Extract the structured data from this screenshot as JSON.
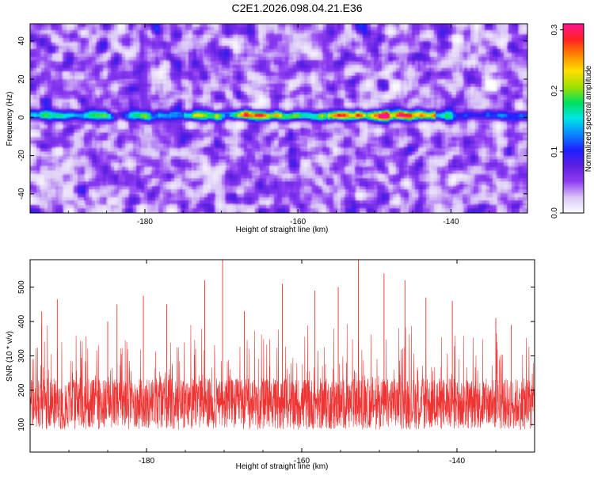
{
  "title": "C2E1.2026.098.04.21.E36",
  "chart_data": [
    {
      "type": "heatmap",
      "xlabel": "Height of straight line (km)",
      "ylabel": "Frequency (Hz)",
      "xlim": [
        -195,
        -130
      ],
      "ylim": [
        -50,
        49
      ],
      "x_ticks": [
        -180,
        -160,
        -140
      ],
      "y_ticks": [
        -40,
        -20,
        0,
        20,
        40
      ],
      "colorbar": {
        "label": "Normalized spectral amplitude",
        "range": [
          0.0,
          0.31
        ],
        "ticks": [
          0.0,
          0.1,
          0.2,
          0.3
        ],
        "colormap": [
          "#ffffff",
          "#d9c6f5",
          "#8f3df2",
          "#5b1fe0",
          "#1f1fff",
          "#0a88ff",
          "#00e5e5",
          "#00e060",
          "#a0e000",
          "#ffe000",
          "#ff8800",
          "#ff2020",
          "#ff1493"
        ]
      },
      "features": {
        "background_level": 0.05,
        "ridge_frequency_hz": 1,
        "ridge_peak_level": 0.28,
        "ridge_strongest_near_km": [
          -152,
          -146
        ]
      }
    },
    {
      "type": "line",
      "xlabel": "Height of straight line (km)",
      "ylabel": "SNR (10 * v/v)",
      "xlim": [
        -195,
        -130
      ],
      "ylim": [
        20,
        580
      ],
      "x_ticks": [
        -180,
        -160,
        -140
      ],
      "y_ticks": [
        100,
        200,
        300,
        400,
        500
      ],
      "series": [
        {
          "color": "#ee3333",
          "baseline": 160,
          "spikes": [
            {
              "x": -193.5,
              "y": 430
            },
            {
              "x": -191.5,
              "y": 465
            },
            {
              "x": -185.0,
              "y": 400
            },
            {
              "x": -183.8,
              "y": 450
            },
            {
              "x": -180.4,
              "y": 475
            },
            {
              "x": -177.4,
              "y": 450
            },
            {
              "x": -172.5,
              "y": 520
            },
            {
              "x": -170.2,
              "y": 580
            },
            {
              "x": -167.4,
              "y": 430
            },
            {
              "x": -162.5,
              "y": 510
            },
            {
              "x": -158.3,
              "y": 490
            },
            {
              "x": -155.3,
              "y": 500
            },
            {
              "x": -152.7,
              "y": 580
            },
            {
              "x": -149.4,
              "y": 540
            },
            {
              "x": -146.7,
              "y": 520
            },
            {
              "x": -144.0,
              "y": 470
            },
            {
              "x": -140.6,
              "y": 460
            },
            {
              "x": -135.0,
              "y": 410
            },
            {
              "x": -133.0,
              "y": 390
            }
          ]
        }
      ]
    }
  ]
}
